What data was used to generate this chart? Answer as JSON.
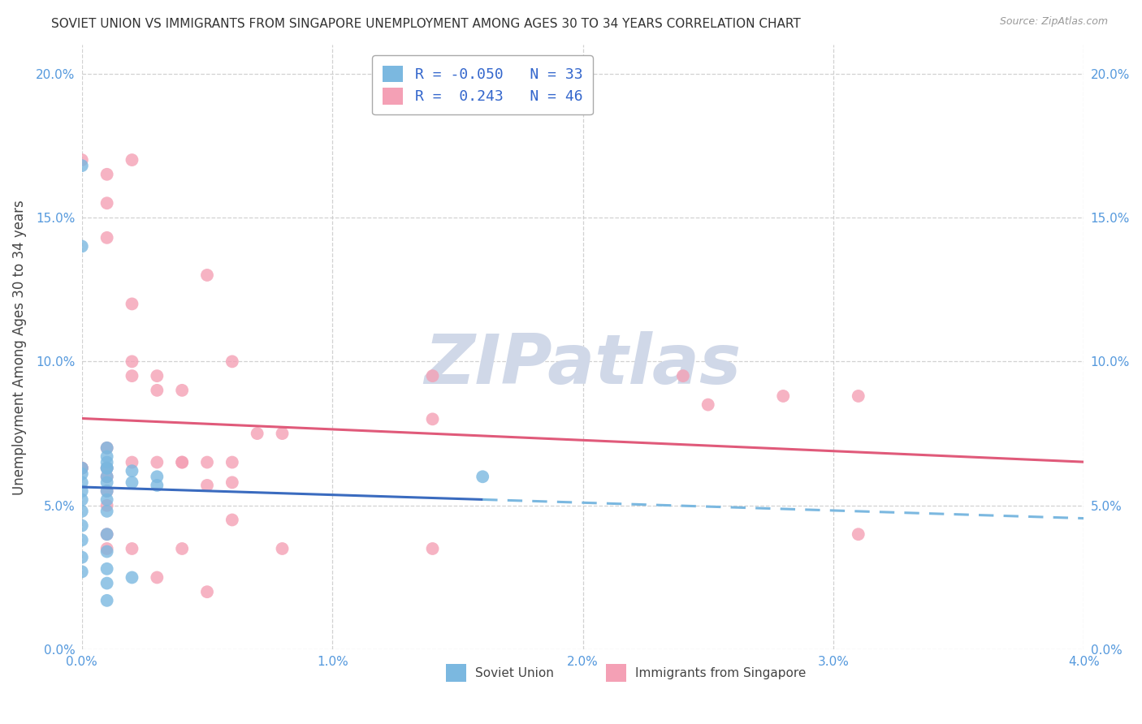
{
  "title": "SOVIET UNION VS IMMIGRANTS FROM SINGAPORE UNEMPLOYMENT AMONG AGES 30 TO 34 YEARS CORRELATION CHART",
  "source": "Source: ZipAtlas.com",
  "ylabel": "Unemployment Among Ages 30 to 34 years",
  "legend_label_blue": "Soviet Union",
  "legend_label_pink": "Immigrants from Singapore",
  "legend_R_blue": "-0.050",
  "legend_N_blue": "33",
  "legend_R_pink": " 0.243",
  "legend_N_pink": "46",
  "xlim": [
    0.0,
    0.04
  ],
  "ylim": [
    0.0,
    0.21
  ],
  "x_ticks": [
    0.0,
    0.01,
    0.02,
    0.03,
    0.04
  ],
  "x_tick_labels": [
    "0.0%",
    "1.0%",
    "2.0%",
    "3.0%",
    "4.0%"
  ],
  "y_ticks": [
    0.0,
    0.05,
    0.1,
    0.15,
    0.2
  ],
  "y_tick_labels": [
    "0.0%",
    "5.0%",
    "10.0%",
    "15.0%",
    "20.0%"
  ],
  "color_blue": "#7bb8e0",
  "color_pink": "#f4a0b5",
  "color_blue_line_solid": "#3a6bbf",
  "color_pink_line": "#e05a7a",
  "color_blue_line_dashed": "#7bb8e0",
  "watermark_color": "#d0d8e8",
  "grid_color": "#cccccc",
  "blue_x": [
    0.0,
    0.0,
    0.0,
    0.0,
    0.0,
    0.0,
    0.0,
    0.0,
    0.0,
    0.0,
    0.001,
    0.001,
    0.001,
    0.001,
    0.001,
    0.001,
    0.001,
    0.001,
    0.001,
    0.001,
    0.001,
    0.001,
    0.002,
    0.002,
    0.002,
    0.001,
    0.001,
    0.001,
    0.0,
    0.0,
    0.003,
    0.003,
    0.016
  ],
  "blue_y": [
    0.063,
    0.061,
    0.058,
    0.055,
    0.052,
    0.048,
    0.043,
    0.038,
    0.032,
    0.027,
    0.065,
    0.063,
    0.06,
    0.058,
    0.055,
    0.052,
    0.048,
    0.04,
    0.034,
    0.028,
    0.023,
    0.017,
    0.062,
    0.058,
    0.025,
    0.07,
    0.067,
    0.063,
    0.168,
    0.14,
    0.057,
    0.06,
    0.06
  ],
  "pink_x": [
    0.0,
    0.0,
    0.0,
    0.001,
    0.001,
    0.001,
    0.001,
    0.001,
    0.001,
    0.001,
    0.001,
    0.001,
    0.002,
    0.002,
    0.002,
    0.002,
    0.002,
    0.003,
    0.003,
    0.003,
    0.004,
    0.004,
    0.004,
    0.005,
    0.005,
    0.005,
    0.006,
    0.006,
    0.006,
    0.007,
    0.008,
    0.008,
    0.014,
    0.014,
    0.014,
    0.024,
    0.025,
    0.028,
    0.031,
    0.031,
    0.001,
    0.002,
    0.003,
    0.004,
    0.005,
    0.006
  ],
  "pink_y": [
    0.17,
    0.063,
    0.063,
    0.165,
    0.155,
    0.143,
    0.063,
    0.06,
    0.055,
    0.05,
    0.04,
    0.035,
    0.17,
    0.12,
    0.1,
    0.065,
    0.035,
    0.095,
    0.09,
    0.025,
    0.09,
    0.065,
    0.035,
    0.13,
    0.065,
    0.02,
    0.1,
    0.065,
    0.058,
    0.075,
    0.075,
    0.035,
    0.08,
    0.095,
    0.035,
    0.095,
    0.085,
    0.088,
    0.088,
    0.04,
    0.07,
    0.095,
    0.065,
    0.065,
    0.057,
    0.045
  ]
}
